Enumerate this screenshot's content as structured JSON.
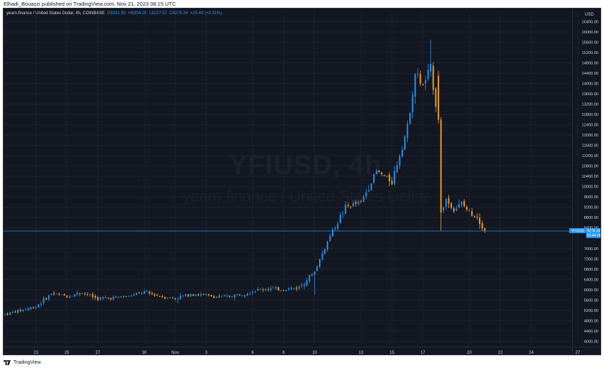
{
  "attribution": "Elhadi_Bouazzi published on TradingView.com, Nov 21, 2023 08:15 UTC",
  "legend": {
    "symbol": "yearn.finance / United States Dollar, 4h, COINBASE",
    "o_label": "O",
    "o_value": "8261.90",
    "h_label": "H",
    "h_value": "8304.25",
    "l_label": "L",
    "l_value": "8227.52",
    "c_label": "C",
    "c_value": "8278.34",
    "change": "+25.40 (+0.31%)"
  },
  "watermark": {
    "ticker": "YFIUSD, 4h",
    "name": "yearn.finance / United States Dollar"
  },
  "axis": {
    "currency": "USD",
    "price_ticks": [
      "16400.00",
      "16000.00",
      "15600.00",
      "15200.00",
      "14800.00",
      "14400.00",
      "14000.00",
      "13600.00",
      "13200.00",
      "12800.00",
      "12400.00",
      "12000.00",
      "11600.00",
      "11200.00",
      "10800.00",
      "10400.00",
      "10000.00",
      "9600.00",
      "9200.00",
      "8800.00",
      "8400.00",
      "7600.00",
      "7200.00",
      "6800.00",
      "6400.00",
      "6000.00",
      "5600.00",
      "5200.00",
      "4800.00",
      "4400.00",
      "4000.00"
    ],
    "time_ticks": [
      "23",
      "25",
      "27",
      "30",
      "Nov",
      "3",
      "6",
      "8",
      "10",
      "13",
      "15",
      "17",
      "20",
      "22",
      "24",
      "27"
    ]
  },
  "price_badge": {
    "symbol": "YFIUSD",
    "price": "8278.34",
    "countdown": "03:44:38"
  },
  "footer": {
    "brand": "TradingView"
  },
  "colors": {
    "background": "#131722",
    "up": "#2196f3",
    "down": "#f7a21b",
    "grid": "#1e222d",
    "text": "#d1d4dc",
    "price_line": "#2196f3"
  },
  "chart_data": {
    "type": "candlestick",
    "symbol": "YFIUSD",
    "interval": "4h",
    "exchange": "COINBASE",
    "ylim": [
      3900,
      16800
    ],
    "y_log": false,
    "last_price": 8278.34,
    "anchors": [
      [
        "Oct 21",
        5050
      ],
      [
        "Oct 23",
        5350
      ],
      [
        "Oct 24",
        5850
      ],
      [
        "Oct 25",
        5750
      ],
      [
        "Oct 26",
        5900
      ],
      [
        "Oct 27",
        5650
      ],
      [
        "Oct 29",
        5750
      ],
      [
        "Oct 30",
        5900
      ],
      [
        "Oct 31",
        5750
      ],
      [
        "Nov 1",
        5650
      ],
      [
        "Nov 2",
        5850
      ],
      [
        "Nov 4",
        5700
      ],
      [
        "Nov 5",
        5800
      ],
      [
        "Nov 6",
        5950
      ],
      [
        "Nov 7",
        6050
      ],
      [
        "Nov 8",
        6000
      ],
      [
        "Nov 9",
        6100
      ],
      [
        "Nov 10",
        6700
      ],
      [
        "Nov 11",
        8100
      ],
      [
        "Nov 12",
        9200
      ],
      [
        "Nov 13",
        9400
      ],
      [
        "Nov 14",
        10600
      ],
      [
        "Nov 15",
        10200
      ],
      [
        "Nov 16",
        12300
      ],
      [
        "Nov 16 12:00",
        14400
      ],
      [
        "Nov 17",
        13900
      ],
      [
        "Nov 17 12:00",
        14600
      ],
      [
        "Nov 18",
        12500
      ],
      [
        "Nov 18 04:00",
        9000
      ],
      [
        "Nov 18 12:00",
        9500
      ],
      [
        "Nov 19",
        9100
      ],
      [
        "Nov 19 12:00",
        9350
      ],
      [
        "Nov 20",
        9000
      ],
      [
        "Nov 20 12:00",
        8850
      ],
      [
        "Nov 21",
        8278
      ]
    ],
    "notable": {
      "high_wick": 15700,
      "low_wick_nov18": 8300,
      "low_wick_nov10": 5800
    }
  }
}
